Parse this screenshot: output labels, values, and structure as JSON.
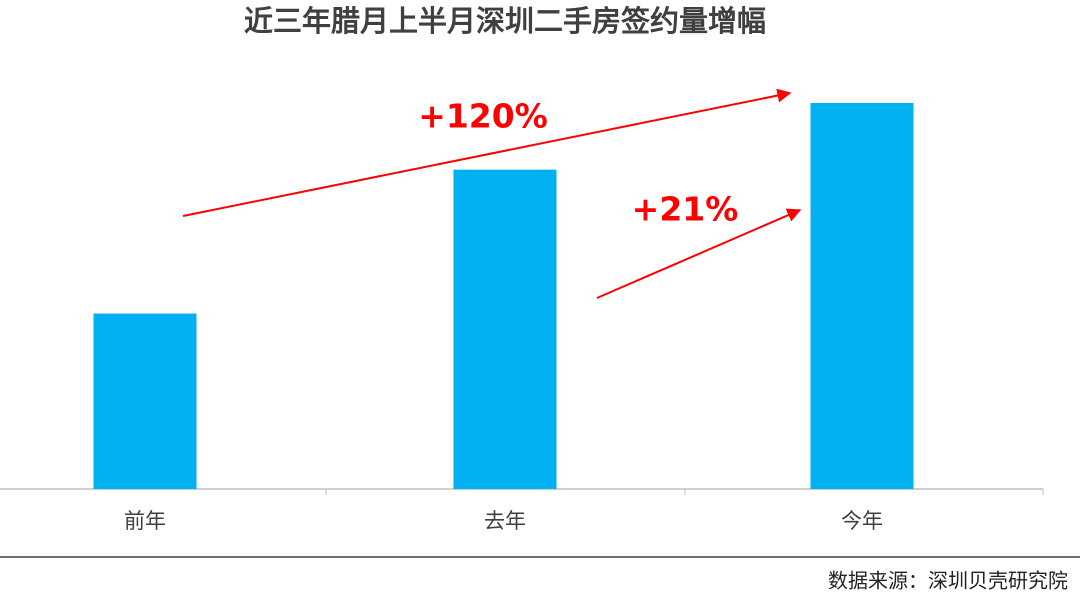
{
  "chart_data": {
    "type": "bar",
    "title": "近三年腊月上半月深圳二手房签约量增幅",
    "categories": [
      "前年",
      "去年",
      "今年"
    ],
    "values": [
      100,
      182,
      220
    ],
    "color": "#00b0f0",
    "annotations": [
      "+120%",
      "+21%"
    ],
    "source": "数据来源：深圳贝壳研究院"
  }
}
